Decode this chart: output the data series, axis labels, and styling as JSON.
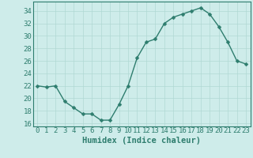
{
  "x": [
    0,
    1,
    2,
    3,
    4,
    5,
    6,
    7,
    8,
    9,
    10,
    11,
    12,
    13,
    14,
    15,
    16,
    17,
    18,
    19,
    20,
    21,
    22,
    23
  ],
  "y": [
    22,
    21.8,
    22,
    19.5,
    18.5,
    17.5,
    17.5,
    16.5,
    16.5,
    19,
    22,
    26.5,
    29,
    29.5,
    32,
    33,
    33.5,
    34,
    34.5,
    33.5,
    31.5,
    29,
    26,
    25.5
  ],
  "title": "",
  "xlabel": "Humidex (Indice chaleur)",
  "ylabel": "",
  "xlim": [
    -0.5,
    23.5
  ],
  "ylim": [
    15.5,
    35.5
  ],
  "yticks": [
    16,
    18,
    20,
    22,
    24,
    26,
    28,
    30,
    32,
    34
  ],
  "xticks": [
    0,
    1,
    2,
    3,
    4,
    5,
    6,
    7,
    8,
    9,
    10,
    11,
    12,
    13,
    14,
    15,
    16,
    17,
    18,
    19,
    20,
    21,
    22,
    23
  ],
  "line_color": "#2e7d6e",
  "marker_color": "#2e7d6e",
  "bg_color": "#ceecea",
  "grid_color": "#b0d8d4",
  "fig_bg": "#ceecea",
  "xlabel_fontsize": 7.5,
  "tick_fontsize": 6.5,
  "line_width": 1.0,
  "marker_size": 2.5,
  "font_family": "monospace"
}
